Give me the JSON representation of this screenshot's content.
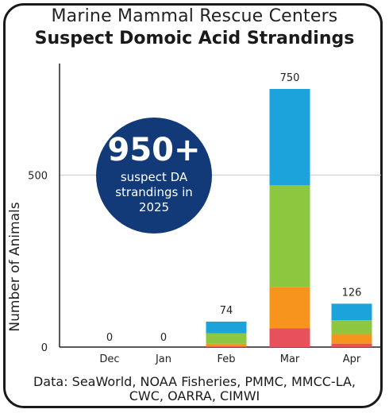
{
  "header": {
    "title_line1": "Marine Mammal Rescue Centers",
    "title_line2": "Suspect Domoic Acid Strandings"
  },
  "callout": {
    "number": "950+",
    "text": "suspect DA strandings in 2025",
    "color": "#123a78"
  },
  "footer": {
    "source": "Data: SeaWorld, NOAA Fisheries, PMMC, MMCC-LA, CWC, OARRA, CIMWI"
  },
  "chart_data": {
    "type": "bar",
    "stacked": true,
    "categories": [
      "Dec",
      "Jan",
      "Feb",
      "Mar",
      "Apr"
    ],
    "totals": [
      0,
      0,
      74,
      750,
      126
    ],
    "ylabel": "Number of Animals",
    "ylim": [
      0,
      750
    ],
    "yticks": [
      0,
      500
    ],
    "grid": true,
    "legend": "none",
    "series": [
      {
        "color": "#e8505b",
        "values": [
          0,
          0,
          2,
          55,
          10
        ]
      },
      {
        "color": "#f7941d",
        "values": [
          0,
          0,
          8,
          120,
          28
        ]
      },
      {
        "color": "#8dc63f",
        "values": [
          0,
          0,
          30,
          295,
          40
        ]
      },
      {
        "color": "#1ca3dc",
        "values": [
          0,
          0,
          34,
          280,
          48
        ]
      }
    ]
  }
}
